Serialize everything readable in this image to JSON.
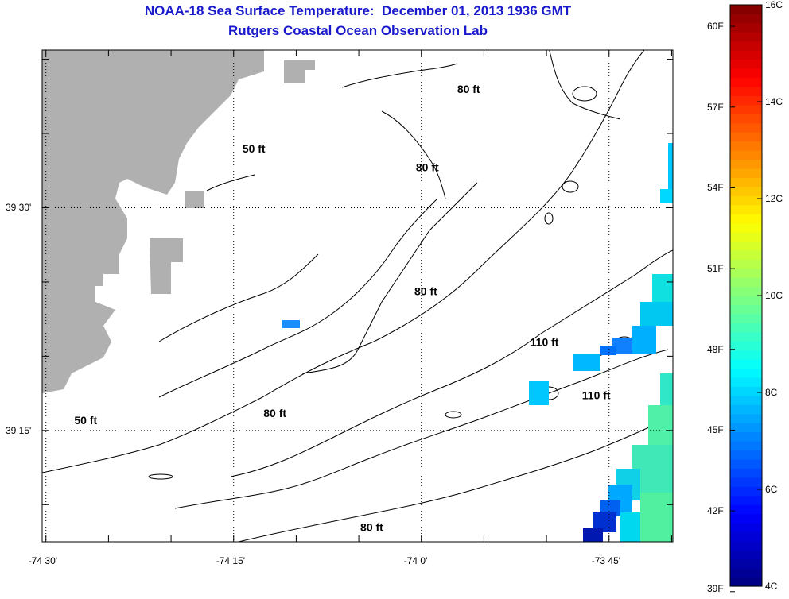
{
  "title": {
    "line1": "NOAA-18 Sea Surface Temperature:  December 01, 2013 1936 GMT",
    "line2": "Rutgers Coastal Ocean Observation Lab"
  },
  "axes": {
    "x_ticks": [
      {
        "lon": -74.5,
        "label": "-74 30'"
      },
      {
        "lon": -74.25,
        "label": "-74 15'"
      },
      {
        "lon": -74.0,
        "label": "-74 0'"
      },
      {
        "lon": -73.75,
        "label": "-73 45'"
      }
    ],
    "y_ticks": [
      {
        "lat": 39.5,
        "label": "39 30'"
      },
      {
        "lat": 39.25,
        "label": "39 15'"
      }
    ],
    "lon_range": [
      -74.505,
      -73.665
    ],
    "lat_range": [
      39.125,
      39.677
    ],
    "grid": "dotted"
  },
  "colorbar": {
    "celsius_labels": [
      "16C",
      "14C",
      "12C",
      "10C",
      "8C",
      "6C",
      "4C"
    ],
    "fahrenheit_labels": [
      "60F",
      "57F",
      "54F",
      "51F",
      "48F",
      "45F",
      "42F",
      "39F"
    ],
    "min_c": 4,
    "max_c": 16,
    "colormap": "jet"
  },
  "depth_contours": [
    {
      "label": "50 ft",
      "lon": -74.223,
      "lat": 39.562
    },
    {
      "label": "50 ft",
      "lon": -74.447,
      "lat": 39.257
    },
    {
      "label": "80 ft",
      "lon": -73.937,
      "lat": 39.629
    },
    {
      "label": "80 ft",
      "lon": -73.992,
      "lat": 39.541
    },
    {
      "label": "80 ft",
      "lon": -73.994,
      "lat": 39.402
    },
    {
      "label": "80 ft",
      "lon": -74.195,
      "lat": 39.265
    },
    {
      "label": "80 ft",
      "lon": -74.066,
      "lat": 39.137
    },
    {
      "label": "110 ft",
      "lon": -73.836,
      "lat": 39.345
    },
    {
      "label": "110 ft",
      "lon": -73.767,
      "lat": 39.285
    }
  ],
  "colors": {
    "land": "#b0b0b0",
    "title": "#1a1acc",
    "contour": "#000000"
  }
}
